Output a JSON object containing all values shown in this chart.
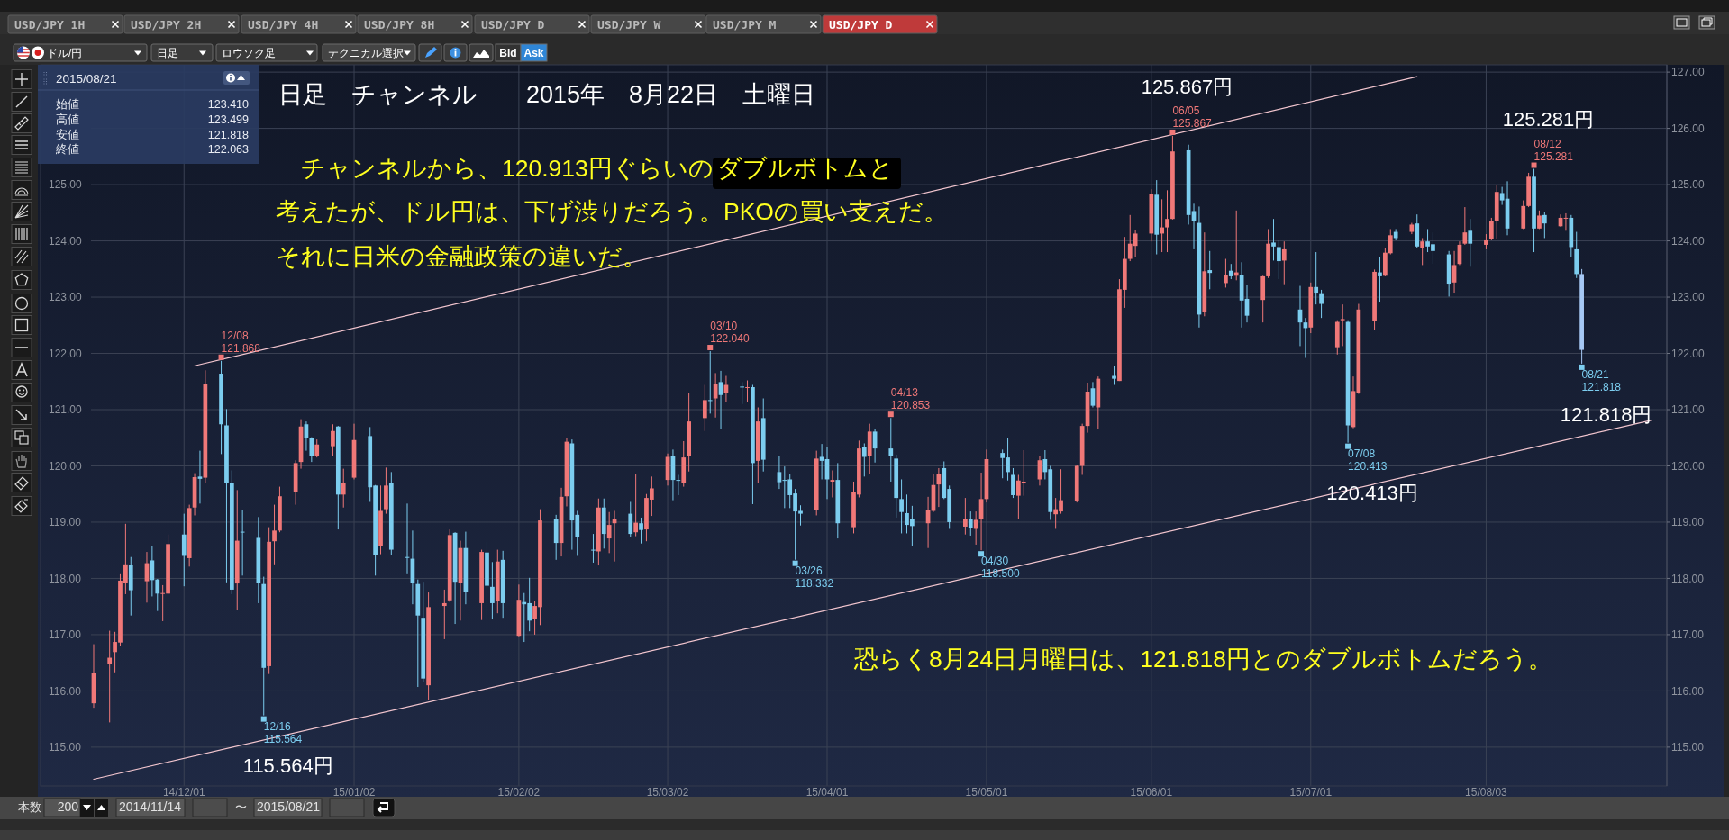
{
  "chart_data": {
    "type": "candlestick",
    "title": "日足　チャンネル　　2015年　8月22日　土曜日",
    "x": [
      "2014-11-14",
      "2014-11-17",
      "2014-11-18",
      "2014-11-19",
      "2014-11-20",
      "2014-11-21",
      "2014-11-24",
      "2014-11-25",
      "2014-11-26",
      "2014-11-27",
      "2014-11-28",
      "2014-12-01",
      "2014-12-02",
      "2014-12-03",
      "2014-12-04",
      "2014-12-05",
      "2014-12-08",
      "2014-12-09",
      "2014-12-10",
      "2014-12-11",
      "2014-12-12",
      "2014-12-15",
      "2014-12-16",
      "2014-12-17",
      "2014-12-18",
      "2014-12-19",
      "2014-12-22",
      "2014-12-23",
      "2014-12-24",
      "2014-12-25",
      "2014-12-26",
      "2014-12-29",
      "2014-12-30",
      "2014-12-31",
      "2015-01-02",
      "2015-01-05",
      "2015-01-06",
      "2015-01-07",
      "2015-01-08",
      "2015-01-09",
      "2015-01-12",
      "2015-01-13",
      "2015-01-14",
      "2015-01-15",
      "2015-01-16",
      "2015-01-19",
      "2015-01-20",
      "2015-01-21",
      "2015-01-22",
      "2015-01-23",
      "2015-01-26",
      "2015-01-27",
      "2015-01-28",
      "2015-01-29",
      "2015-01-30",
      "2015-02-02",
      "2015-02-03",
      "2015-02-04",
      "2015-02-05",
      "2015-02-06",
      "2015-02-09",
      "2015-02-10",
      "2015-02-11",
      "2015-02-12",
      "2015-02-13",
      "2015-02-16",
      "2015-02-17",
      "2015-02-18",
      "2015-02-19",
      "2015-02-20",
      "2015-02-23",
      "2015-02-24",
      "2015-02-25",
      "2015-02-26",
      "2015-02-27",
      "2015-03-02",
      "2015-03-03",
      "2015-03-04",
      "2015-03-05",
      "2015-03-06",
      "2015-03-09",
      "2015-03-10",
      "2015-03-11",
      "2015-03-12",
      "2015-03-13",
      "2015-03-16",
      "2015-03-17",
      "2015-03-18",
      "2015-03-19",
      "2015-03-20",
      "2015-03-23",
      "2015-03-24",
      "2015-03-25",
      "2015-03-26",
      "2015-03-27",
      "2015-03-30",
      "2015-03-31",
      "2015-04-01",
      "2015-04-02",
      "2015-04-03",
      "2015-04-06",
      "2015-04-07",
      "2015-04-08",
      "2015-04-09",
      "2015-04-10",
      "2015-04-13",
      "2015-04-14",
      "2015-04-15",
      "2015-04-16",
      "2015-04-17",
      "2015-04-20",
      "2015-04-21",
      "2015-04-22",
      "2015-04-23",
      "2015-04-24",
      "2015-04-27",
      "2015-04-28",
      "2015-04-29",
      "2015-04-30",
      "2015-05-01",
      "2015-05-04",
      "2015-05-05",
      "2015-05-06",
      "2015-05-07",
      "2015-05-08",
      "2015-05-11",
      "2015-05-12",
      "2015-05-13",
      "2015-05-14",
      "2015-05-15",
      "2015-05-18",
      "2015-05-19",
      "2015-05-20",
      "2015-05-21",
      "2015-05-22",
      "2015-05-25",
      "2015-05-26",
      "2015-05-27",
      "2015-05-28",
      "2015-05-29",
      "2015-06-01",
      "2015-06-02",
      "2015-06-03",
      "2015-06-04",
      "2015-06-05",
      "2015-06-08",
      "2015-06-09",
      "2015-06-10",
      "2015-06-11",
      "2015-06-12",
      "2015-06-15",
      "2015-06-16",
      "2015-06-17",
      "2015-06-18",
      "2015-06-19",
      "2015-06-22",
      "2015-06-23",
      "2015-06-24",
      "2015-06-25",
      "2015-06-26",
      "2015-06-29",
      "2015-06-30",
      "2015-07-01",
      "2015-07-02",
      "2015-07-03",
      "2015-07-06",
      "2015-07-07",
      "2015-07-08",
      "2015-07-09",
      "2015-07-10",
      "2015-07-13",
      "2015-07-14",
      "2015-07-15",
      "2015-07-16",
      "2015-07-17",
      "2015-07-20",
      "2015-07-21",
      "2015-07-22",
      "2015-07-23",
      "2015-07-24",
      "2015-07-27",
      "2015-07-28",
      "2015-07-29",
      "2015-07-30",
      "2015-07-31",
      "2015-08-03",
      "2015-08-04",
      "2015-08-05",
      "2015-08-06",
      "2015-08-07",
      "2015-08-10",
      "2015-08-11",
      "2015-08-12",
      "2015-08-13",
      "2015-08-14",
      "2015-08-17",
      "2015-08-18",
      "2015-08-19",
      "2015-08-20",
      "2015-08-21"
    ],
    "ohlc": [
      [
        115.78,
        116.83,
        115.7,
        116.32
      ],
      [
        116.48,
        117.07,
        115.44,
        116.59
      ],
      [
        116.69,
        117.05,
        116.33,
        116.87
      ],
      [
        116.86,
        118.09,
        116.8,
        117.96
      ],
      [
        117.92,
        118.97,
        117.72,
        118.25
      ],
      [
        118.24,
        118.38,
        117.34,
        117.79
      ],
      [
        117.95,
        118.47,
        117.57,
        118.27
      ],
      [
        118.32,
        118.58,
        117.68,
        117.97
      ],
      [
        117.98,
        117.99,
        117.42,
        117.73
      ],
      [
        117.73,
        117.88,
        117.24,
        117.74
      ],
      [
        117.73,
        118.78,
        117.72,
        118.61
      ],
      [
        118.78,
        119.15,
        117.86,
        118.4
      ],
      [
        118.36,
        119.31,
        118.21,
        119.25
      ],
      [
        119.26,
        119.87,
        119.12,
        119.8
      ],
      [
        119.81,
        120.27,
        119.33,
        119.77
      ],
      [
        119.79,
        121.7,
        119.69,
        121.46
      ],
      [
        121.64,
        121.868,
        120.21,
        120.74
      ],
      [
        120.72,
        121.01,
        117.93,
        119.69
      ],
      [
        119.7,
        119.92,
        117.72,
        117.8
      ],
      [
        117.91,
        119.57,
        117.44,
        118.67
      ],
      [
        118.83,
        119.22,
        118.05,
        118.82
      ],
      [
        118.72,
        119.09,
        117.56,
        117.92
      ],
      [
        117.9,
        118.03,
        115.564,
        116.41
      ],
      [
        116.44,
        118.91,
        116.3,
        118.65
      ],
      [
        118.66,
        119.31,
        118.25,
        118.85
      ],
      [
        118.85,
        119.63,
        118.82,
        119.46
      ],
      [
        119.54,
        120.1,
        119.31,
        120.05
      ],
      [
        120.07,
        120.83,
        119.95,
        120.7
      ],
      [
        120.74,
        120.79,
        120.27,
        120.49
      ],
      [
        120.49,
        120.51,
        120.07,
        120.18
      ],
      [
        120.17,
        120.47,
        120.15,
        120.38
      ],
      [
        120.35,
        120.74,
        120.17,
        120.62
      ],
      [
        120.7,
        120.71,
        118.87,
        119.49
      ],
      [
        119.49,
        119.95,
        119.26,
        119.7
      ],
      [
        119.79,
        120.75,
        119.76,
        120.46
      ],
      [
        120.53,
        120.69,
        119.36,
        119.62
      ],
      [
        119.65,
        119.66,
        118.05,
        118.41
      ],
      [
        118.57,
        119.65,
        118.43,
        119.2
      ],
      [
        119.23,
        119.97,
        119.15,
        119.65
      ],
      [
        119.69,
        119.89,
        118.41,
        118.51
      ],
      [
        118.38,
        119.33,
        118.09,
        118.37
      ],
      [
        118.35,
        118.85,
        117.54,
        117.92
      ],
      [
        117.9,
        117.98,
        116.07,
        117.34
      ],
      [
        117.3,
        117.94,
        116.15,
        116.22
      ],
      [
        116.1,
        117.75,
        115.84,
        117.49
      ],
      [
        117.51,
        117.8,
        116.92,
        117.56
      ],
      [
        117.61,
        118.87,
        117.58,
        118.77
      ],
      [
        118.81,
        118.82,
        117.19,
        117.94
      ],
      [
        117.92,
        118.67,
        117.25,
        118.54
      ],
      [
        118.54,
        118.83,
        117.54,
        117.76
      ],
      [
        117.56,
        118.51,
        117.26,
        118.47
      ],
      [
        118.46,
        118.65,
        117.27,
        117.87
      ],
      [
        117.85,
        118.29,
        117.27,
        117.56
      ],
      [
        117.6,
        118.51,
        117.38,
        118.3
      ],
      [
        118.33,
        118.49,
        117.3,
        117.56
      ],
      [
        116.98,
        117.89,
        116.97,
        117.62
      ],
      [
        117.58,
        117.74,
        116.87,
        117.54
      ],
      [
        117.56,
        118.01,
        117.06,
        117.25
      ],
      [
        117.28,
        117.6,
        117.0,
        117.51
      ],
      [
        117.49,
        119.23,
        117.17,
        119.03
      ],
      [
        119.05,
        119.13,
        118.33,
        118.63
      ],
      [
        118.63,
        119.61,
        118.39,
        119.45
      ],
      [
        119.46,
        120.49,
        119.28,
        120.43
      ],
      [
        120.4,
        120.47,
        118.51,
        119.03
      ],
      [
        119.13,
        119.2,
        118.4,
        118.74
      ],
      [
        118.51,
        118.79,
        118.28,
        118.5
      ],
      [
        118.48,
        119.42,
        118.23,
        119.26
      ],
      [
        119.26,
        119.42,
        118.53,
        118.79
      ],
      [
        118.71,
        119.18,
        118.45,
        118.95
      ],
      [
        118.98,
        119.2,
        118.3,
        119.05
      ],
      [
        119.15,
        119.36,
        118.74,
        118.79
      ],
      [
        118.82,
        119.85,
        118.75,
        118.99
      ],
      [
        118.98,
        119.08,
        118.62,
        118.86
      ],
      [
        118.87,
        119.5,
        118.66,
        119.43
      ],
      [
        119.4,
        119.81,
        119.11,
        119.6
      ],
      [
        119.75,
        120.22,
        119.65,
        120.16
      ],
      [
        120.17,
        120.29,
        119.39,
        119.75
      ],
      [
        119.75,
        119.84,
        119.48,
        119.74
      ],
      [
        119.7,
        120.44,
        119.63,
        120.15
      ],
      [
        120.17,
        121.3,
        119.9,
        120.79
      ],
      [
        120.85,
        121.44,
        120.62,
        121.17
      ],
      [
        121.17,
        122.04,
        120.93,
        121.16
      ],
      [
        121.2,
        121.65,
        120.86,
        121.45
      ],
      [
        121.49,
        121.69,
        120.65,
        121.26
      ],
      [
        121.3,
        121.6,
        121.13,
        121.44
      ],
      [
        121.41,
        121.49,
        121.1,
        121.4
      ],
      [
        121.39,
        121.52,
        121.13,
        121.4
      ],
      [
        121.4,
        121.44,
        119.32,
        120.05
      ],
      [
        120.09,
        121.04,
        119.7,
        120.79
      ],
      [
        120.85,
        121.2,
        119.9,
        120.11
      ],
      [
        119.89,
        120.17,
        119.59,
        119.71
      ],
      [
        119.75,
        119.99,
        119.25,
        119.74
      ],
      [
        119.76,
        119.86,
        119.25,
        119.48
      ],
      [
        119.51,
        119.59,
        118.332,
        119.19
      ],
      [
        119.2,
        119.3,
        118.94,
        119.15
      ],
      [
        119.22,
        120.27,
        119.12,
        120.13
      ],
      [
        120.16,
        120.39,
        119.76,
        120.09
      ],
      [
        120.12,
        120.34,
        119.41,
        119.76
      ],
      [
        119.72,
        119.92,
        119.44,
        119.75
      ],
      [
        119.75,
        120.05,
        118.71,
        118.98
      ],
      [
        118.91,
        119.72,
        118.8,
        119.53
      ],
      [
        119.49,
        120.45,
        119.44,
        120.31
      ],
      [
        120.34,
        120.4,
        119.81,
        120.16
      ],
      [
        120.17,
        120.75,
        119.86,
        120.61
      ],
      [
        120.61,
        120.65,
        120.06,
        120.31
      ],
      [
        120.31,
        120.853,
        119.72,
        120.17
      ],
      [
        120.13,
        120.2,
        119.08,
        119.43
      ],
      [
        119.41,
        119.76,
        118.8,
        119.18
      ],
      [
        119.16,
        119.49,
        118.8,
        118.95
      ],
      [
        119.06,
        119.29,
        118.57,
        118.93
      ],
      [
        118.98,
        119.45,
        118.54,
        119.22
      ],
      [
        119.2,
        119.85,
        119.18,
        119.66
      ],
      [
        119.67,
        119.96,
        119.27,
        119.86
      ],
      [
        119.96,
        120.08,
        119.41,
        119.43
      ],
      [
        119.59,
        119.65,
        118.88,
        119.0
      ],
      [
        118.92,
        119.43,
        118.78,
        119.05
      ],
      [
        119.05,
        119.19,
        118.76,
        118.89
      ],
      [
        118.88,
        119.19,
        118.6,
        119.04
      ],
      [
        119.06,
        119.88,
        118.5,
        119.41
      ],
      [
        119.41,
        120.29,
        119.35,
        120.12
      ],
      [
        120.23,
        120.29,
        119.78,
        120.14
      ],
      [
        120.15,
        120.49,
        119.74,
        119.89
      ],
      [
        119.84,
        119.96,
        119.43,
        119.48
      ],
      [
        119.47,
        119.84,
        119.05,
        119.74
      ],
      [
        119.7,
        120.28,
        119.47,
        119.72
      ],
      [
        119.76,
        120.18,
        119.65,
        120.1
      ],
      [
        120.12,
        120.28,
        119.76,
        119.89
      ],
      [
        119.94,
        120.0,
        119.04,
        119.18
      ],
      [
        119.14,
        119.43,
        118.88,
        119.23
      ],
      [
        119.19,
        119.94,
        119.15,
        119.39
      ],
      [
        119.37,
        120.02,
        119.35,
        120.0
      ],
      [
        120.0,
        120.75,
        119.84,
        120.71
      ],
      [
        120.71,
        121.48,
        120.59,
        121.32
      ],
      [
        121.38,
        121.49,
        121.04,
        121.07
      ],
      [
        121.04,
        121.59,
        120.65,
        121.55
      ],
      [
        121.6,
        121.77,
        121.44,
        121.55
      ],
      [
        121.51,
        123.32,
        121.51,
        123.14
      ],
      [
        123.13,
        124.07,
        122.81,
        123.68
      ],
      [
        123.68,
        124.46,
        123.64,
        123.95
      ],
      [
        123.91,
        124.19,
        123.72,
        124.13
      ],
      [
        124.13,
        124.92,
        123.99,
        124.83
      ],
      [
        124.82,
        125.08,
        123.76,
        124.11
      ],
      [
        124.13,
        124.74,
        123.8,
        124.24
      ],
      [
        124.24,
        124.9,
        123.8,
        124.39
      ],
      [
        124.39,
        125.867,
        124.38,
        125.59
      ],
      [
        125.61,
        125.71,
        124.29,
        124.46
      ],
      [
        124.53,
        124.66,
        123.85,
        124.35
      ],
      [
        124.32,
        124.61,
        122.46,
        122.69
      ],
      [
        122.73,
        124.15,
        122.66,
        123.46
      ],
      [
        123.48,
        123.82,
        123.14,
        123.43
      ],
      [
        123.25,
        123.68,
        123.17,
        123.39
      ],
      [
        123.47,
        123.59,
        123.32,
        123.37
      ],
      [
        123.38,
        124.54,
        123.3,
        123.44
      ],
      [
        123.4,
        123.62,
        122.46,
        122.94
      ],
      [
        122.97,
        123.22,
        122.55,
        122.67
      ],
      [
        122.95,
        123.38,
        122.55,
        123.37
      ],
      [
        123.37,
        124.21,
        123.34,
        123.95
      ],
      [
        123.97,
        124.39,
        123.65,
        123.9
      ],
      [
        123.89,
        124.01,
        123.32,
        123.64
      ],
      [
        123.65,
        123.99,
        123.23,
        123.85
      ],
      [
        122.78,
        123.2,
        122.13,
        122.55
      ],
      [
        122.55,
        122.63,
        121.92,
        122.45
      ],
      [
        122.46,
        123.26,
        122.36,
        123.18
      ],
      [
        123.18,
        123.8,
        122.87,
        123.08
      ],
      [
        123.07,
        123.13,
        122.63,
        122.88
      ],
      [
        122.11,
        122.59,
        121.98,
        122.56
      ],
      [
        122.59,
        122.87,
        122.13,
        122.61
      ],
      [
        122.56,
        122.59,
        120.413,
        120.72
      ],
      [
        120.69,
        121.59,
        120.67,
        121.33
      ],
      [
        121.29,
        122.88,
        121.28,
        122.78
      ],
      [
        122.57,
        123.49,
        122.42,
        123.45
      ],
      [
        123.44,
        123.72,
        122.92,
        123.37
      ],
      [
        123.38,
        123.87,
        123.37,
        123.79
      ],
      [
        123.78,
        124.21,
        123.76,
        124.1
      ],
      [
        124.16,
        124.21,
        124.01,
        124.05
      ],
      [
        124.16,
        124.32,
        124.12,
        124.29
      ],
      [
        124.31,
        124.47,
        123.87,
        123.9
      ],
      [
        123.87,
        124.05,
        123.57,
        123.99
      ],
      [
        123.99,
        124.21,
        123.8,
        123.9
      ],
      [
        123.94,
        124.15,
        123.59,
        123.82
      ],
      [
        123.76,
        123.82,
        123.01,
        123.24
      ],
      [
        123.26,
        123.82,
        123.08,
        123.57
      ],
      [
        123.59,
        123.99,
        123.57,
        123.93
      ],
      [
        123.95,
        124.6,
        123.93,
        124.15
      ],
      [
        124.18,
        124.39,
        123.54,
        123.95
      ],
      [
        123.93,
        124.12,
        123.85,
        124.01
      ],
      [
        124.04,
        124.41,
        124.01,
        124.36
      ],
      [
        124.36,
        124.99,
        124.04,
        124.87
      ],
      [
        124.85,
        124.96,
        124.64,
        124.72
      ],
      [
        124.75,
        125.06,
        124.1,
        124.22
      ],
      [
        124.22,
        124.72,
        124.21,
        124.62
      ],
      [
        124.62,
        125.21,
        124.6,
        125.14
      ],
      [
        125.14,
        125.281,
        123.8,
        124.22
      ],
      [
        124.22,
        124.54,
        124.21,
        124.45
      ],
      [
        124.46,
        124.51,
        124.05,
        124.31
      ],
      [
        124.26,
        124.47,
        124.25,
        124.41
      ],
      [
        124.4,
        124.49,
        124.18,
        124.41
      ],
      [
        124.41,
        124.46,
        123.72,
        123.89
      ],
      [
        123.85,
        124.16,
        123.34,
        123.41
      ],
      [
        123.41,
        123.499,
        121.818,
        122.063
      ]
    ],
    "colors": [
      "#f07878",
      "#f07878",
      "#f07878",
      "#f07878",
      "#f07878",
      "#7ccdef",
      "#f07878",
      "#7ccdef",
      "#7ccdef",
      "#f07878",
      "#f07878",
      "#7ccdef",
      "#f07878",
      "#f07878",
      "#7ccdef",
      "#f07878",
      "#7ccdef",
      "#7ccdef",
      "#7ccdef",
      "#f07878",
      "#7ccdef",
      "#7ccdef",
      "#7ccdef",
      "#f07878",
      "#f07878",
      "#f07878",
      "#f07878",
      "#f07878",
      "#7ccdef",
      "#7ccdef",
      "#f07878",
      "#f07878",
      "#7ccdef",
      "#f07878",
      "#f07878",
      "#7ccdef",
      "#7ccdef",
      "#f07878",
      "#f07878",
      "#7ccdef",
      "#7ccdef",
      "#7ccdef",
      "#7ccdef",
      "#7ccdef",
      "#f07878",
      "#f07878",
      "#f07878",
      "#7ccdef",
      "#f07878",
      "#7ccdef",
      "#f07878",
      "#7ccdef",
      "#7ccdef",
      "#f07878",
      "#7ccdef",
      "#f07878",
      "#7ccdef",
      "#7ccdef",
      "#f07878",
      "#f07878",
      "#7ccdef",
      "#f07878",
      "#f07878",
      "#7ccdef",
      "#7ccdef",
      "#7ccdef",
      "#f07878",
      "#7ccdef",
      "#f07878",
      "#f07878",
      "#7ccdef",
      "#f07878",
      "#7ccdef",
      "#f07878",
      "#f07878",
      "#f07878",
      "#7ccdef",
      "#7ccdef",
      "#f07878",
      "#f07878",
      "#f07878",
      "#7ccdef",
      "#f07878",
      "#7ccdef",
      "#f07878",
      "#7ccdef",
      "#f07878",
      "#7ccdef",
      "#f07878",
      "#7ccdef",
      "#7ccdef",
      "#7ccdef",
      "#7ccdef",
      "#7ccdef",
      "#7ccdef",
      "#f07878",
      "#7ccdef",
      "#7ccdef",
      "#f07878",
      "#7ccdef",
      "#f07878",
      "#f07878",
      "#7ccdef",
      "#f07878",
      "#7ccdef",
      "#7ccdef",
      "#7ccdef",
      "#7ccdef",
      "#7ccdef",
      "#7ccdef",
      "#f07878",
      "#f07878",
      "#f07878",
      "#7ccdef",
      "#7ccdef",
      "#f07878",
      "#7ccdef",
      "#f07878",
      "#f07878",
      "#f07878",
      "#7ccdef",
      "#7ccdef",
      "#7ccdef",
      "#f07878",
      "#f07878",
      "#f07878",
      "#7ccdef",
      "#7ccdef",
      "#f07878",
      "#f07878",
      "#f07878",
      "#f07878",
      "#f07878",
      "#7ccdef",
      "#f07878",
      "#7ccdef",
      "#f07878",
      "#f07878",
      "#f07878",
      "#f07878",
      "#f07878",
      "#7ccdef",
      "#f07878",
      "#f07878",
      "#f07878",
      "#7ccdef",
      "#7ccdef",
      "#7ccdef",
      "#f07878",
      "#7ccdef",
      "#f07878",
      "#7ccdef",
      "#f07878",
      "#7ccdef",
      "#7ccdef",
      "#f07878",
      "#f07878",
      "#7ccdef",
      "#7ccdef",
      "#f07878",
      "#7ccdef",
      "#7ccdef",
      "#f07878",
      "#7ccdef",
      "#7ccdef",
      "#f07878",
      "#f07878",
      "#7ccdef",
      "#f07878",
      "#f07878",
      "#f07878",
      "#7ccdef",
      "#f07878",
      "#f07878",
      "#7ccdef",
      "#f07878",
      "#7ccdef",
      "#f07878",
      "#7ccdef",
      "#7ccdef",
      "#7ccdef",
      "#f07878",
      "#f07878",
      "#f07878",
      "#7ccdef",
      "#f07878",
      "#f07878",
      "#f07878",
      "#7ccdef",
      "#7ccdef",
      "#f07878",
      "#f07878",
      "#7ccdef",
      "#f07878",
      "#7ccdef",
      "#f07878",
      "#f07878",
      "#7ccdef",
      "#7ccdef",
      "#a6c8f4"
    ],
    "series": [
      {
        "type": "line",
        "x": [
          "2014-12-03",
          "2015-07-21"
        ],
        "values": [
          121.78,
          126.92
        ],
        "color": "#f3c6cf"
      },
      {
        "type": "line",
        "x": [
          "2014-11-14",
          "2015-09-03"
        ],
        "values": [
          114.43,
          120.81
        ],
        "color": "#f3c6cf"
      }
    ],
    "xlim": [
      "2014-11-04",
      "2015-09-06"
    ],
    "xticks": [
      {
        "value": "2014-12-01",
        "label": "14/12/01"
      },
      {
        "value": "2015-01-02",
        "label": "15/01/02"
      },
      {
        "value": "2015-02-02",
        "label": "15/02/02"
      },
      {
        "value": "2015-03-02",
        "label": "15/03/02"
      },
      {
        "value": "2015-04-01",
        "label": "15/04/01"
      },
      {
        "value": "2015-05-01",
        "label": "15/05/01"
      },
      {
        "value": "2015-06-01",
        "label": "15/06/01"
      },
      {
        "value": "2015-07-01",
        "label": "15/07/01"
      },
      {
        "value": "2015-08-03",
        "label": "15/08/03"
      }
    ],
    "ylim": [
      114.31,
      127.13
    ],
    "yticks": [
      {
        "value": 115,
        "label": "115.00"
      },
      {
        "value": 116,
        "label": "116.00"
      },
      {
        "value": 117,
        "label": "117.00"
      },
      {
        "value": 118,
        "label": "118.00"
      },
      {
        "value": 119,
        "label": "119.00"
      },
      {
        "value": 120,
        "label": "120.00"
      },
      {
        "value": 121,
        "label": "121.00"
      },
      {
        "value": 122,
        "label": "122.00"
      },
      {
        "value": 123,
        "label": "123.00"
      },
      {
        "value": 124,
        "label": "124.00"
      },
      {
        "value": 125,
        "label": "125.00"
      }
    ],
    "y2lim": [
      114.31,
      127.13
    ],
    "y2ticks": [
      {
        "value": 115,
        "label": "115.00"
      },
      {
        "value": 116,
        "label": "116.00"
      },
      {
        "value": 117,
        "label": "117.00"
      },
      {
        "value": 118,
        "label": "118.00"
      },
      {
        "value": 119,
        "label": "119.00"
      },
      {
        "value": 120,
        "label": "120.00"
      },
      {
        "value": 121,
        "label": "121.00"
      },
      {
        "value": 122,
        "label": "122.00"
      },
      {
        "value": 123,
        "label": "123.00"
      },
      {
        "value": 124,
        "label": "124.00"
      },
      {
        "value": 125,
        "label": "125.00"
      },
      {
        "value": 126,
        "label": "126.00"
      },
      {
        "value": 127,
        "label": "127.00"
      }
    ],
    "grid": true,
    "annotations": [
      "チャンネルから、120.913円ぐらいの",
      "ダブルボトムと",
      "考えたが、ドル円は、下げ渋りだろう。PKOの買い支えだ。",
      "それに日米の金融政策の違いだ。",
      "恐らく8月24日月曜日は、121.818円とのダブルボトムだろう。",
      {
        "text": "12/08\n121.868",
        "x": "2014-12-08",
        "y": 121.868
      },
      {
        "text": "12/16\n115.564",
        "x": "2014-12-16",
        "y": 115.564
      },
      {
        "text": "03/10\n122.040",
        "x": "2015-03-10",
        "y": 122.04
      },
      {
        "text": "03/26\n118.332",
        "x": "2015-03-26",
        "y": 118.332
      },
      {
        "text": "04/13\n120.853",
        "x": "2015-04-13",
        "y": 120.853
      },
      {
        "text": "04/30\n118.500",
        "x": "2015-04-30",
        "y": 118.5
      },
      {
        "text": "06/05\n125.867",
        "x": "2015-06-05",
        "y": 125.867
      },
      {
        "text": "07/08\n120.413",
        "x": "2015-07-08",
        "y": 120.413
      },
      {
        "text": "08/12\n125.281",
        "x": "2015-08-12",
        "y": 125.281
      },
      {
        "text": "08/21\n121.818",
        "x": "2015-08-21",
        "y": 121.818
      },
      {
        "text": "125.867円",
        "x": "2015-06-05",
        "y": 125.867
      },
      {
        "text": "125.281円",
        "x": "2015-08-12",
        "y": 125.281
      },
      {
        "text": "121.818円",
        "x": "2015-08-21",
        "y": 121.818
      },
      {
        "text": "120.413円",
        "x": "2015-07-08",
        "y": 120.413
      },
      {
        "text": "115.564円",
        "x": "2014-12-16",
        "y": 115.564
      },
      "USD/JPY 1H",
      "USD/JPY 2H",
      "USD/JPY 4H",
      "USD/JPY 8H",
      "USD/JPY D",
      "USD/JPY W",
      "USD/JPY M",
      "USD/JPY D",
      "ドル/円",
      "日足",
      "ロウソク足",
      "テクニカル選択",
      "Bid",
      "Ask",
      "2015/08/21",
      "始値",
      "123.410",
      "高値",
      "123.499",
      "安値",
      "121.818",
      "終値",
      "122.063",
      "本数",
      "200",
      "2014/11/14",
      "〜",
      "2015/08/21"
    ]
  }
}
